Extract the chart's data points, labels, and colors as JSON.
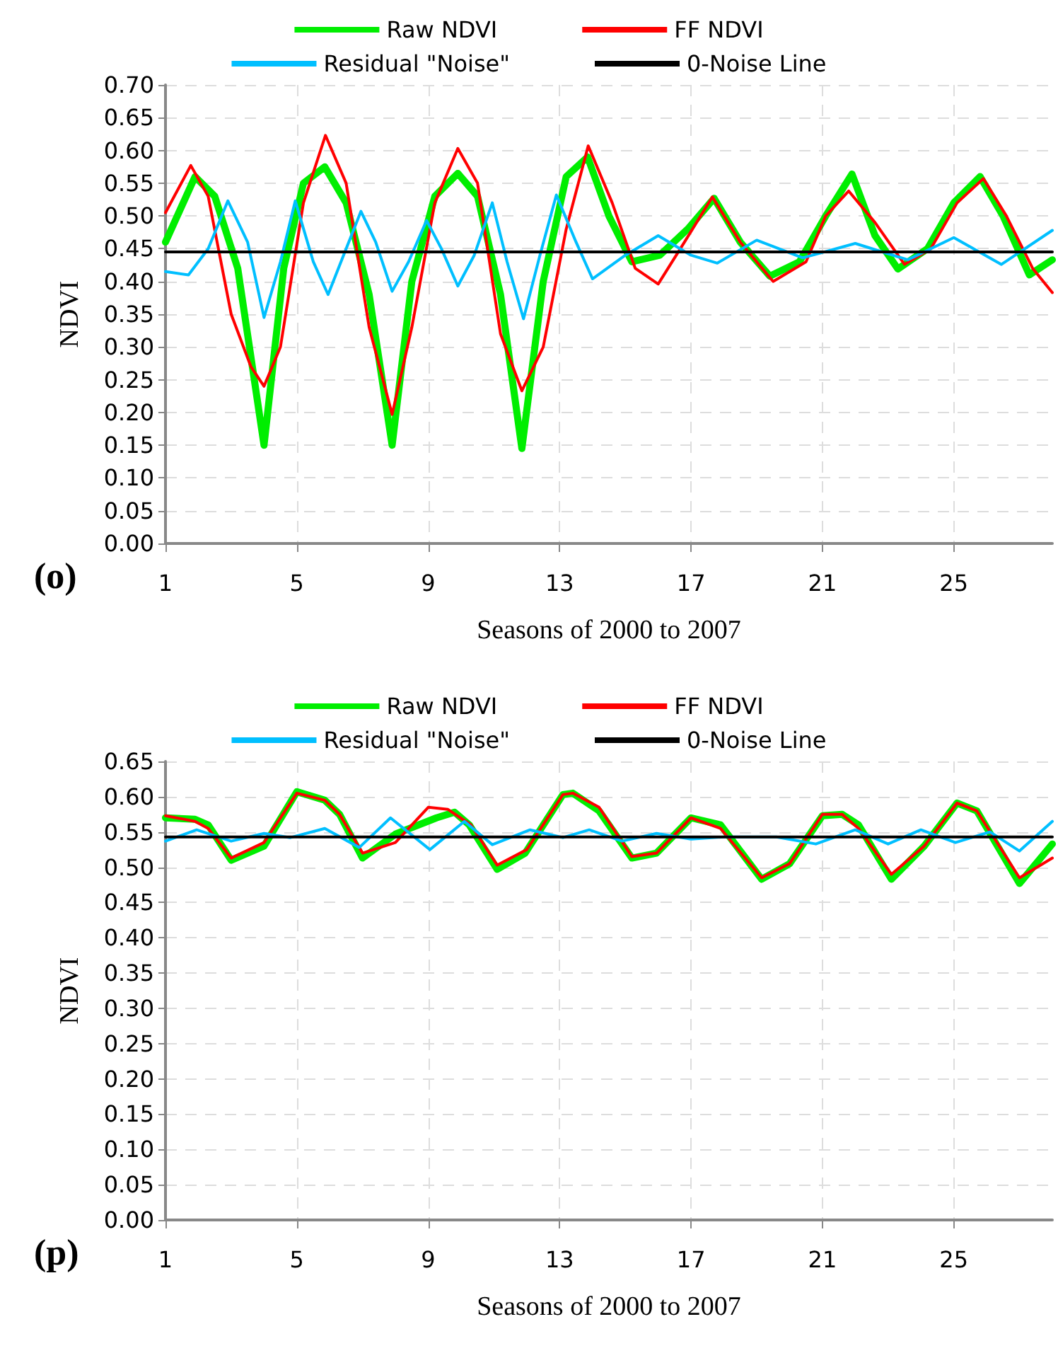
{
  "chart_data": [
    {
      "type": "line",
      "xlabel": "Seasons of 2000 to 2007",
      "ylabel": "NDVI",
      "annotations": [
        "(o)"
      ],
      "grid": true,
      "legend": "top",
      "marker": "none",
      "line_style": "solid",
      "xlim": [
        1,
        28
      ],
      "xticks": [
        1,
        5,
        9,
        13,
        17,
        21,
        25
      ],
      "ylim": [
        0,
        0.7
      ],
      "yticks": [
        {
          "value": 0,
          "label": "0.00"
        },
        {
          "value": 0.05,
          "label": "0.05"
        },
        {
          "value": 0.1,
          "label": "0.10"
        },
        {
          "value": 0.15,
          "label": "0.15"
        },
        {
          "value": 0.2,
          "label": "0.20"
        },
        {
          "value": 0.25,
          "label": "0.25"
        },
        {
          "value": 0.3,
          "label": "0.30"
        },
        {
          "value": 0.35,
          "label": "0.35"
        },
        {
          "value": 0.4,
          "label": "0.40"
        },
        {
          "value": 0.45,
          "label": "0.45"
        },
        {
          "value": 0.5,
          "label": "0.50"
        },
        {
          "value": 0.55,
          "label": "0.55"
        },
        {
          "value": 0.6,
          "label": "0.60"
        },
        {
          "value": 0.65,
          "label": "0.65"
        },
        {
          "value": 0.7,
          "label": "0.70"
        }
      ],
      "series": [
        {
          "name": "Raw NDVI",
          "color": "#00ee00",
          "x": [
            1,
            1.9,
            2.5,
            3.2,
            4,
            4.6,
            5.2,
            5.85,
            6.5,
            7.2,
            7.9,
            8.5,
            9.2,
            9.9,
            10.5,
            11.2,
            11.85,
            12.5,
            13.2,
            13.85,
            14.5,
            15.2,
            16.05,
            16.9,
            17.7,
            18.5,
            19.4,
            20.3,
            21.1,
            21.9,
            22.6,
            23.3,
            24.2,
            25,
            25.8,
            26.5,
            27.3,
            28
          ],
          "values": [
            0.46,
            0.56,
            0.53,
            0.42,
            0.15,
            0.42,
            0.55,
            0.575,
            0.52,
            0.38,
            0.15,
            0.4,
            0.53,
            0.565,
            0.53,
            0.38,
            0.145,
            0.4,
            0.56,
            0.59,
            0.5,
            0.43,
            0.44,
            0.48,
            0.527,
            0.46,
            0.408,
            0.43,
            0.5,
            0.564,
            0.47,
            0.419,
            0.45,
            0.52,
            0.56,
            0.5,
            0.41,
            0.433
          ]
        },
        {
          "name": "FF NDVI",
          "color": "#ff0000",
          "x": [
            1,
            1.77,
            2.3,
            3,
            3.6,
            4,
            4.5,
            5.2,
            5.87,
            6.5,
            7.2,
            7.9,
            8.5,
            9.2,
            9.9,
            10.5,
            11.2,
            11.85,
            12.5,
            13.2,
            13.87,
            14.6,
            15.3,
            16,
            16.8,
            17.65,
            18.5,
            19.5,
            20.5,
            21.1,
            21.8,
            22.6,
            23.5,
            24.3,
            25.1,
            25.9,
            26.6,
            27.4,
            28
          ],
          "values": [
            0.505,
            0.577,
            0.53,
            0.35,
            0.27,
            0.24,
            0.3,
            0.52,
            0.623,
            0.55,
            0.33,
            0.197,
            0.33,
            0.52,
            0.603,
            0.55,
            0.32,
            0.233,
            0.3,
            0.48,
            0.607,
            0.52,
            0.42,
            0.396,
            0.46,
            0.529,
            0.46,
            0.4,
            0.43,
            0.5,
            0.538,
            0.49,
            0.426,
            0.45,
            0.52,
            0.557,
            0.5,
            0.42,
            0.383
          ]
        },
        {
          "name": "Residual \"Noise\"",
          "color": "#00bfff",
          "x": [
            1,
            1.7,
            2.3,
            2.9,
            3.5,
            4,
            4.5,
            4.95,
            5.5,
            5.95,
            6.5,
            6.95,
            7.4,
            7.9,
            8.4,
            8.95,
            9.4,
            9.9,
            10.4,
            10.95,
            11.4,
            11.9,
            12.4,
            12.9,
            13.5,
            14,
            15,
            16,
            17,
            17.8,
            19,
            20.4,
            22,
            23.6,
            25,
            26.45,
            28
          ],
          "values": [
            0.415,
            0.41,
            0.45,
            0.523,
            0.46,
            0.345,
            0.43,
            0.523,
            0.43,
            0.38,
            0.45,
            0.507,
            0.46,
            0.385,
            0.43,
            0.493,
            0.45,
            0.393,
            0.44,
            0.52,
            0.43,
            0.343,
            0.44,
            0.532,
            0.46,
            0.404,
            0.44,
            0.47,
            0.44,
            0.428,
            0.463,
            0.436,
            0.458,
            0.433,
            0.467,
            0.426,
            0.478
          ]
        },
        {
          "name": "0-Noise Line",
          "color": "#000000",
          "x": [
            1,
            28
          ],
          "values": [
            0.445,
            0.445
          ]
        }
      ]
    },
    {
      "type": "line",
      "xlabel": "Seasons of 2000 to 2007",
      "ylabel": "NDVI",
      "annotations": [
        "(p)"
      ],
      "grid": true,
      "legend": "top",
      "marker": "none",
      "line_style": "solid",
      "xlim": [
        1,
        28
      ],
      "xticks": [
        1,
        5,
        9,
        13,
        17,
        21,
        25
      ],
      "ylim": [
        0,
        0.65
      ],
      "yticks": [
        {
          "value": 0,
          "label": "0.00"
        },
        {
          "value": 0.05,
          "label": "0.05"
        },
        {
          "value": 0.1,
          "label": "0.10"
        },
        {
          "value": 0.15,
          "label": "0.15"
        },
        {
          "value": 0.2,
          "label": "0.20"
        },
        {
          "value": 0.25,
          "label": "0.25"
        },
        {
          "value": 0.3,
          "label": "0.30"
        },
        {
          "value": 0.35,
          "label": "0.35"
        },
        {
          "value": 0.4,
          "label": "0.40"
        },
        {
          "value": 0.45,
          "label": "0.45"
        },
        {
          "value": 0.5,
          "label": "0.50"
        },
        {
          "value": 0.55,
          "label": "0.55"
        },
        {
          "value": 0.6,
          "label": "0.60"
        },
        {
          "value": 0.65,
          "label": "0.65"
        }
      ],
      "series": [
        {
          "name": "Raw NDVI",
          "color": "#00ee00",
          "x": [
            1,
            1.9,
            2.3,
            3,
            4,
            5,
            5.85,
            6.3,
            7,
            8,
            9.25,
            9.8,
            10.25,
            11.1,
            11.95,
            13.1,
            13.4,
            14.2,
            15.2,
            15.95,
            17,
            17.9,
            19.15,
            20,
            21,
            21.6,
            22.1,
            23.1,
            24.1,
            25.1,
            25.7,
            27,
            28
          ],
          "values": [
            0.57,
            0.568,
            0.56,
            0.51,
            0.53,
            0.607,
            0.595,
            0.575,
            0.513,
            0.547,
            0.57,
            0.578,
            0.56,
            0.497,
            0.52,
            0.603,
            0.605,
            0.58,
            0.513,
            0.52,
            0.57,
            0.56,
            0.483,
            0.505,
            0.573,
            0.575,
            0.56,
            0.483,
            0.53,
            0.591,
            0.58,
            0.477,
            0.533
          ]
        },
        {
          "name": "FF NDVI",
          "color": "#ff0000",
          "x": [
            1,
            1.9,
            2.3,
            3,
            4,
            5,
            5.85,
            6.3,
            7,
            8,
            9,
            9.6,
            10.3,
            11.1,
            12,
            13.1,
            13.4,
            14.2,
            15.2,
            15.95,
            17,
            17.9,
            19.15,
            20,
            21,
            21.6,
            22.1,
            23.1,
            24.1,
            25.1,
            25.7,
            27,
            28
          ],
          "values": [
            0.573,
            0.565,
            0.555,
            0.513,
            0.535,
            0.605,
            0.595,
            0.575,
            0.52,
            0.535,
            0.585,
            0.582,
            0.56,
            0.503,
            0.525,
            0.603,
            0.605,
            0.585,
            0.515,
            0.52,
            0.57,
            0.555,
            0.485,
            0.505,
            0.575,
            0.575,
            0.555,
            0.49,
            0.53,
            0.591,
            0.58,
            0.485,
            0.513
          ]
        },
        {
          "name": "Residual \"Noise\"",
          "color": "#00bfff",
          "x": [
            1,
            1.95,
            3,
            4,
            4.8,
            5.85,
            6.9,
            7.85,
            9.05,
            10.1,
            10.95,
            12.1,
            13.1,
            13.9,
            14.9,
            15.95,
            17,
            18,
            19.6,
            20.8,
            22,
            23,
            24,
            25.05,
            26.1,
            27,
            28
          ],
          "values": [
            0.537,
            0.553,
            0.537,
            0.548,
            0.542,
            0.555,
            0.528,
            0.57,
            0.525,
            0.565,
            0.532,
            0.553,
            0.542,
            0.553,
            0.537,
            0.548,
            0.54,
            0.543,
            0.543,
            0.533,
            0.553,
            0.533,
            0.553,
            0.535,
            0.55,
            0.523,
            0.565
          ]
        },
        {
          "name": "0-Noise Line",
          "color": "#000000",
          "x": [
            1,
            28
          ],
          "values": [
            0.543,
            0.543
          ]
        }
      ]
    }
  ]
}
